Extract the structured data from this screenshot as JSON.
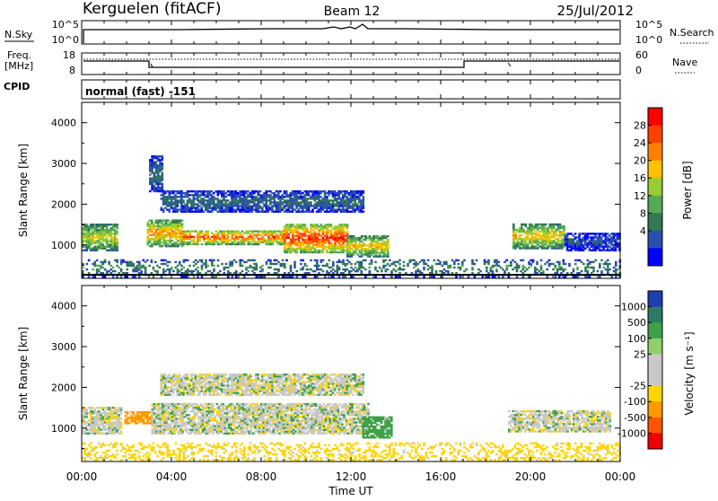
{
  "header": {
    "station": "Kerguelen (fitACF)",
    "beam": "Beam 12",
    "date": "25/Jul/2012"
  },
  "noise_panel": {
    "left_label": "N.Sky",
    "right_label": "N.Search",
    "left_ticks": [
      "10^5",
      "10^0"
    ],
    "right_ticks": [
      "10^5",
      "10^0"
    ]
  },
  "freq_panel": {
    "left_label_line1": "Freq.",
    "left_label_line2": "[MHz]",
    "right_label": "Nave",
    "left_ticks": [
      "18",
      "8"
    ],
    "right_ticks": [
      "60",
      "0"
    ]
  },
  "cpid_panel": {
    "label": "CPID",
    "value": "normal (fast) -151"
  },
  "x_axis": {
    "title": "Time UT",
    "tick_labels": [
      "00:00",
      "04:00",
      "08:00",
      "12:00",
      "16:00",
      "20:00",
      "00:00"
    ]
  },
  "chart_data": [
    {
      "type": "heatmap",
      "name": "Power",
      "ylabel": "Slant Range [km]",
      "yticks": [
        1000,
        2000,
        3000,
        4000
      ],
      "ylim": [
        180,
        4500
      ],
      "xlim_hours": [
        0,
        24
      ],
      "colorbar_label": "Power [dB]",
      "colorbar_ticks": [
        "28",
        "24",
        "20",
        "16",
        "12",
        "8",
        "4"
      ],
      "colorbar_colors": [
        "#ff0000",
        "#ff4000",
        "#ff8000",
        "#ffc000",
        "#99cc33",
        "#55aa55",
        "#337755",
        "#2a4fb0",
        "#0000ff"
      ],
      "features": [
        {
          "t0": 0.0,
          "t1": 1.6,
          "r0": 850,
          "r1": 1500,
          "level": 18
        },
        {
          "t0": 2.9,
          "t1": 4.5,
          "r0": 950,
          "r1": 1600,
          "level": 22
        },
        {
          "t0": 4.5,
          "t1": 9.0,
          "r0": 1000,
          "r1": 1350,
          "level": 26
        },
        {
          "t0": 9.0,
          "t1": 11.8,
          "r0": 800,
          "r1": 1500,
          "level": 28
        },
        {
          "t0": 11.8,
          "t1": 13.6,
          "r0": 700,
          "r1": 1200,
          "level": 20
        },
        {
          "t0": 3.5,
          "t1": 12.5,
          "r0": 1800,
          "r1": 2300,
          "level": 8
        },
        {
          "t0": 3.0,
          "t1": 3.6,
          "r0": 2300,
          "r1": 3200,
          "level": 8
        },
        {
          "t0": 19.2,
          "t1": 21.5,
          "r0": 900,
          "r1": 1500,
          "level": 20
        },
        {
          "t0": 21.5,
          "t1": 24.0,
          "r0": 850,
          "r1": 1300,
          "level": 6
        },
        {
          "t0": 0.0,
          "t1": 24.0,
          "r0": 200,
          "r1": 650,
          "level": 10
        }
      ]
    },
    {
      "type": "heatmap",
      "name": "Velocity",
      "ylabel": "Slant Range [km]",
      "yticks": [
        1000,
        2000,
        3000,
        4000
      ],
      "ylim": [
        180,
        4500
      ],
      "xlim_hours": [
        0,
        24
      ],
      "colorbar_label": "Velocity [m s⁻¹]",
      "colorbar_ticks": [
        "1000",
        "500",
        "100",
        "25",
        "-25",
        "-100",
        "-500",
        "-1000"
      ],
      "colorbar_colors": [
        "#1f3fb0",
        "#2f7a66",
        "#3fa04a",
        "#8ed06b",
        "#c8c8c8",
        "#c8c8c8",
        "#ffd500",
        "#ff9900",
        "#ff5500",
        "#ee0000"
      ],
      "features": [
        {
          "t0": 0.0,
          "t1": 1.8,
          "r0": 850,
          "r1": 1500,
          "level": 0
        },
        {
          "t0": 1.9,
          "t1": 3.1,
          "r0": 1100,
          "r1": 1400,
          "level": -150
        },
        {
          "t0": 3.1,
          "t1": 12.8,
          "r0": 850,
          "r1": 1600,
          "level": 0
        },
        {
          "t0": 3.5,
          "t1": 12.5,
          "r0": 1800,
          "r1": 2300,
          "level": 0
        },
        {
          "t0": 12.5,
          "t1": 13.8,
          "r0": 750,
          "r1": 1250,
          "level": 60
        },
        {
          "t0": 19.0,
          "t1": 23.5,
          "r0": 900,
          "r1": 1400,
          "level": 0
        },
        {
          "t0": 0.0,
          "t1": 24.0,
          "r0": 200,
          "r1": 650,
          "level": -60
        }
      ]
    }
  ]
}
